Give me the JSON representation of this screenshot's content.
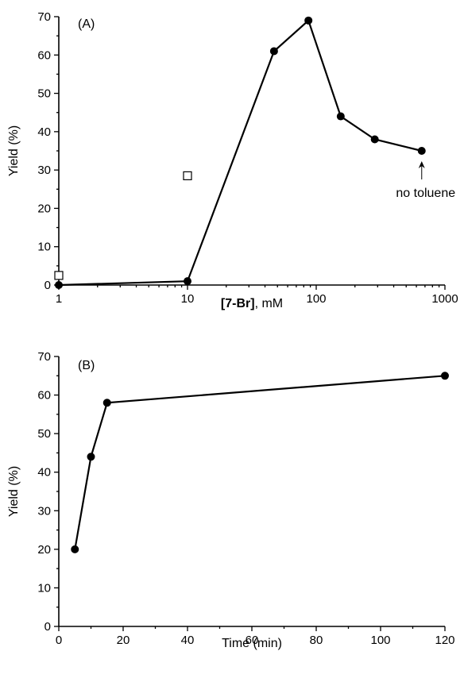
{
  "chart_data": [
    {
      "panel": "(A)",
      "type": "line",
      "x_scale": "log",
      "xlim": [
        1,
        1000
      ],
      "ylim": [
        0,
        70
      ],
      "xlabel": {
        "bold": "[7-Br]",
        "rest": ", mM"
      },
      "ylabel": "Yield (%)",
      "x_ticks": [
        1,
        10,
        100,
        1000
      ],
      "x_tick_labels": [
        "1",
        "10",
        "100",
        "1000"
      ],
      "y_ticks": [
        0,
        10,
        20,
        30,
        40,
        50,
        60,
        70
      ],
      "y_tick_labels": [
        "0",
        "10",
        "20",
        "30",
        "40",
        "50",
        "60",
        "70"
      ],
      "series": [
        {
          "marker": "filled-circle",
          "connected": true,
          "x": [
            1,
            10,
            47,
            87,
            155,
            285,
            660
          ],
          "y": [
            0,
            1,
            61,
            69,
            44,
            38,
            35
          ]
        },
        {
          "marker": "open-square",
          "connected": false,
          "x": [
            1,
            10
          ],
          "y": [
            2.5,
            28.5
          ]
        }
      ],
      "annotation": {
        "text": "no toluene",
        "x": 660,
        "y": 35
      }
    },
    {
      "panel": "(B)",
      "type": "line",
      "x_scale": "linear",
      "xlim": [
        0,
        120
      ],
      "ylim": [
        0,
        70
      ],
      "xlabel": "Time (min)",
      "ylabel": "Yield (%)",
      "x_ticks": [
        0,
        20,
        40,
        60,
        80,
        100,
        120
      ],
      "x_tick_labels": [
        "0",
        "20",
        "40",
        "60",
        "80",
        "100",
        "120"
      ],
      "y_ticks": [
        0,
        10,
        20,
        30,
        40,
        50,
        60,
        70
      ],
      "y_tick_labels": [
        "0",
        "10",
        "20",
        "30",
        "40",
        "50",
        "60",
        "70"
      ],
      "series": [
        {
          "marker": "filled-circle",
          "connected": true,
          "x": [
            5,
            10,
            15,
            120
          ],
          "y": [
            20,
            44,
            58,
            65
          ]
        }
      ]
    }
  ]
}
